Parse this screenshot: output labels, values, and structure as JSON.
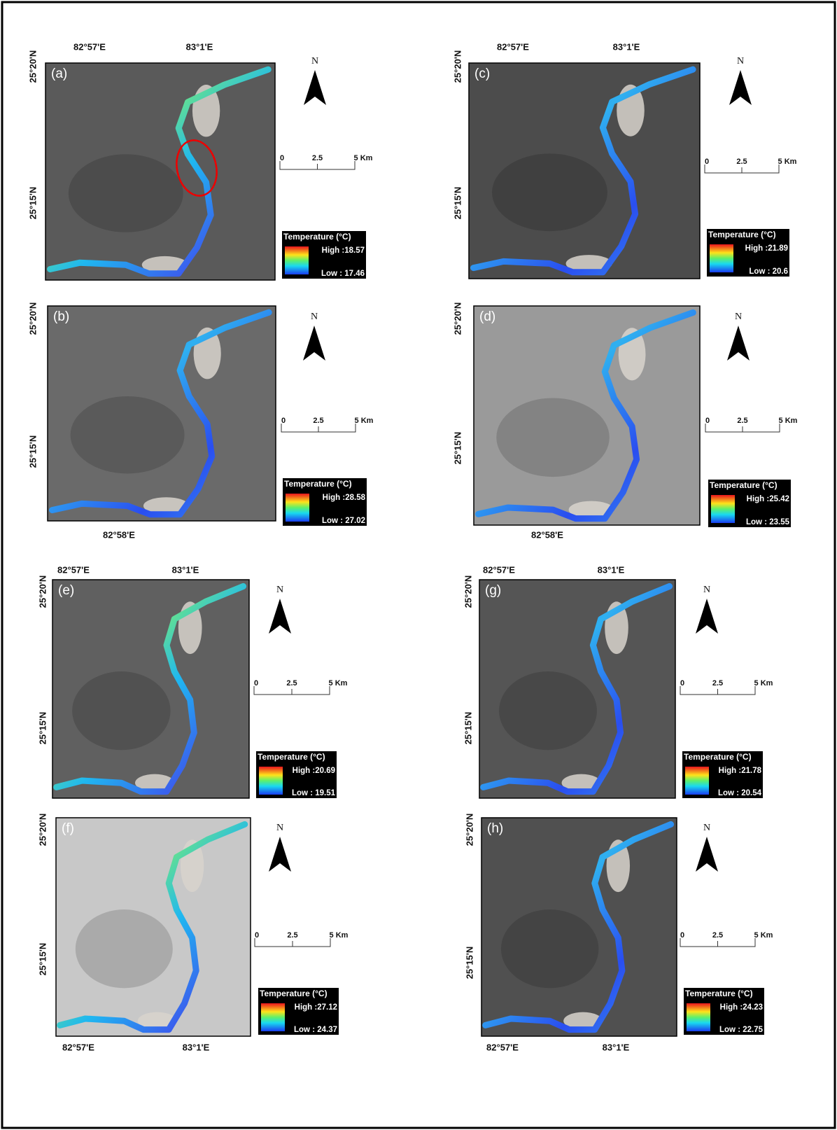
{
  "panels": [
    {
      "label": "(a)",
      "top_lon": [
        "82°57'E",
        "83°1'E"
      ],
      "bottom_lon": [],
      "lat": [
        "25°20'N",
        "25°15'N"
      ],
      "north": "N",
      "scale": [
        "0",
        "2.5",
        "5 Km"
      ],
      "legend": {
        "title": "Temperature (°C)",
        "high": "High :18.57",
        "low": "Low : 17.46"
      }
    },
    {
      "label": "(b)",
      "top_lon": [],
      "bottom_lon": [
        "82°58'E"
      ],
      "lat": [
        "25°20'N",
        "25°15'N"
      ],
      "north": "N",
      "scale": [
        "0",
        "2.5",
        "5 Km"
      ],
      "legend": {
        "title": "Temperature (°C)",
        "high": "High :28.58",
        "low": "Low : 27.02"
      }
    },
    {
      "label": "(c)",
      "top_lon": [
        "82°57'E",
        "83°1'E"
      ],
      "bottom_lon": [],
      "lat": [
        "25°20'N",
        "25°15'N"
      ],
      "north": "N",
      "scale": [
        "0",
        "2.5",
        "5 Km"
      ],
      "legend": {
        "title": "Temperature (°C)",
        "high": "High :21.89",
        "low": "Low : 20.6"
      }
    },
    {
      "label": "(d)",
      "top_lon": [],
      "bottom_lon": [
        "82°58'E"
      ],
      "lat": [
        "25°20'N",
        "25°15'N"
      ],
      "north": "N",
      "scale": [
        "0",
        "2.5",
        "5 Km"
      ],
      "legend": {
        "title": "Temperature (°C)",
        "high": "High :25.42",
        "low": "Low : 23.55"
      }
    },
    {
      "label": "(e)",
      "top_lon": [
        "82°57'E",
        "83°1'E"
      ],
      "bottom_lon": [],
      "lat": [
        "25°20'N",
        "25°15'N"
      ],
      "north": "N",
      "scale": [
        "0",
        "2.5",
        "5 Km"
      ],
      "legend": {
        "title": "Temperature (°C)",
        "high": "High :20.69",
        "low": "Low : 19.51"
      }
    },
    {
      "label": "(f)",
      "top_lon": [],
      "bottom_lon": [
        "82°57'E",
        "83°1'E"
      ],
      "lat": [
        "25°20'N",
        "25°15'N"
      ],
      "north": "N",
      "scale": [
        "0",
        "2.5",
        "5 Km"
      ],
      "legend": {
        "title": "Temperature (°C)",
        "high": "High :27.12",
        "low": "Low : 24.37"
      }
    },
    {
      "label": "(g)",
      "top_lon": [
        "82°57'E",
        "83°1'E"
      ],
      "bottom_lon": [],
      "lat": [
        "25°20'N",
        "25°15'N"
      ],
      "north": "N",
      "scale": [
        "0",
        "2.5",
        "5 Km"
      ],
      "legend": {
        "title": "Temperature (°C)",
        "high": "High :21.78",
        "low": "Low : 20.54"
      }
    },
    {
      "label": "(h)",
      "top_lon": [],
      "bottom_lon": [
        "82°57'E",
        "83°1'E"
      ],
      "lat": [
        "25°20'N",
        "25°15'N"
      ],
      "north": "N",
      "scale": [
        "0",
        "2.5",
        "5 Km"
      ],
      "legend": {
        "title": "Temperature (°C)",
        "high": "High :24.23",
        "low": "Low : 22.75"
      }
    }
  ]
}
